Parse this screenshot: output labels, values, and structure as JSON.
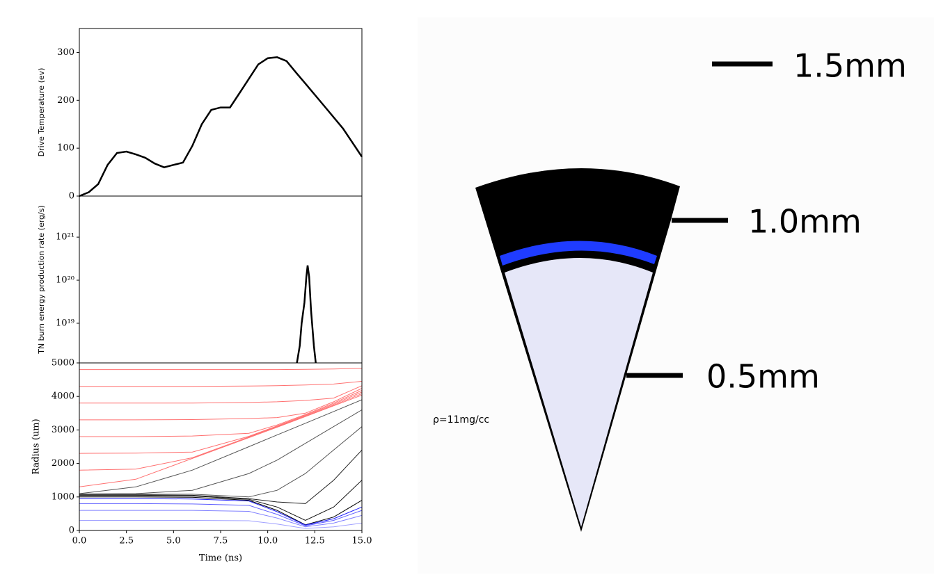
{
  "chart_data": [
    {
      "type": "line",
      "ylabel": "Drive Temperature (ev)",
      "xlim": [
        0,
        15
      ],
      "ylim": [
        0,
        350
      ],
      "yticks": [
        0,
        100,
        200,
        300
      ],
      "x": [
        0,
        0.5,
        1,
        1.5,
        2,
        2.5,
        3,
        3.5,
        4,
        4.5,
        5,
        5.5,
        6,
        6.5,
        7,
        7.5,
        8,
        8.5,
        9,
        9.5,
        10,
        10.5,
        11,
        11.5,
        12,
        13,
        14,
        15
      ],
      "values": [
        0,
        8,
        25,
        65,
        90,
        93,
        87,
        80,
        68,
        60,
        65,
        70,
        105,
        150,
        180,
        185,
        185,
        215,
        245,
        275,
        288,
        290,
        282,
        258,
        235,
        188,
        141,
        82
      ],
      "color": "#000000"
    },
    {
      "type": "line",
      "ylabel": "TN burn energy production rate (erg/s)",
      "xlim": [
        0,
        15
      ],
      "ylim": [
        1.2e+18,
        9e+21
      ],
      "log_y": true,
      "yticks": [
        {
          "value": 1e+19,
          "label": "10¹⁹"
        },
        {
          "value": 1e+20,
          "label": "10²⁰"
        },
        {
          "value": 1e+21,
          "label": "10²¹"
        }
      ],
      "x": [
        11.55,
        11.7,
        11.8,
        11.95,
        12.05,
        12.12,
        12.2,
        12.3,
        12.45,
        12.55
      ],
      "values": [
        1.2e+18,
        3e+18,
        1e+19,
        3e+19,
        1.2e+20,
        2.2e+20,
        1.2e+20,
        2e+19,
        3e+18,
        1.2e+18
      ],
      "color": "#000000"
    },
    {
      "type": "line",
      "ylabel": "Radius (um)",
      "xlabel": "Time (ns)",
      "xlim": [
        0,
        15
      ],
      "ylim": [
        0,
        5000
      ],
      "yticks": [
        0,
        1000,
        2000,
        3000,
        4000,
        5000
      ],
      "xticks": [
        {
          "value": 0,
          "label": "0.0"
        },
        {
          "value": 2.5,
          "label": "2.5"
        },
        {
          "value": 5,
          "label": "5.0"
        },
        {
          "value": 7.5,
          "label": "7.5"
        },
        {
          "value": 10,
          "label": "10.0"
        },
        {
          "value": 12.5,
          "label": "12.5"
        },
        {
          "value": 15,
          "label": "15.0"
        }
      ],
      "x": [
        0,
        3,
        6,
        9,
        10.5,
        12,
        13.5,
        15
      ],
      "series": [
        {
          "color": "#ff7070",
          "values": [
            1300,
            1530,
            2150,
            2770,
            3080,
            3400,
            3720,
            4040
          ]
        },
        {
          "color": "#ff7070",
          "values": [
            1800,
            1830,
            2170,
            2790,
            3100,
            3420,
            3740,
            4080
          ]
        },
        {
          "color": "#ff7070",
          "values": [
            2300,
            2310,
            2340,
            2810,
            3120,
            3440,
            3770,
            4130
          ]
        },
        {
          "color": "#ff7070",
          "values": [
            2800,
            2800,
            2820,
            2900,
            3150,
            3460,
            3800,
            4180
          ]
        },
        {
          "color": "#ff7070",
          "values": [
            3300,
            3300,
            3310,
            3340,
            3370,
            3500,
            3840,
            4240
          ]
        },
        {
          "color": "#ff7070",
          "values": [
            3800,
            3800,
            3800,
            3820,
            3840,
            3880,
            3950,
            4320
          ]
        },
        {
          "color": "#ff7070",
          "values": [
            4300,
            4300,
            4300,
            4310,
            4320,
            4340,
            4370,
            4450
          ]
        },
        {
          "color": "#ff7070",
          "values": [
            4800,
            4800,
            4800,
            4800,
            4800,
            4810,
            4820,
            4840
          ]
        },
        {
          "color": "#555555",
          "values": [
            1100,
            1300,
            1800,
            2500,
            2850,
            3200,
            3550,
            3900
          ]
        },
        {
          "color": "#555555",
          "values": [
            1090,
            1100,
            1200,
            1700,
            2100,
            2600,
            3100,
            3600
          ]
        },
        {
          "color": "#555555",
          "values": [
            1080,
            1080,
            1080,
            1000,
            1200,
            1700,
            2400,
            3100
          ]
        },
        {
          "color": "#222222",
          "values": [
            1060,
            1060,
            1050,
            950,
            850,
            800,
            1500,
            2400
          ]
        },
        {
          "color": "#111111",
          "values": [
            1040,
            1040,
            1030,
            930,
            700,
            300,
            700,
            1500
          ]
        },
        {
          "color": "#000000",
          "values": [
            1000,
            1000,
            990,
            900,
            600,
            170,
            400,
            900
          ]
        },
        {
          "color": "#2020ff",
          "values": [
            950,
            950,
            940,
            880,
            560,
            160,
            350,
            700
          ]
        },
        {
          "color": "#6060ff",
          "values": [
            800,
            800,
            790,
            750,
            480,
            140,
            300,
            600
          ]
        },
        {
          "color": "#8080ff",
          "values": [
            600,
            600,
            600,
            570,
            370,
            110,
            220,
            450
          ]
        },
        {
          "color": "#a0a0ff",
          "values": [
            300,
            300,
            300,
            290,
            190,
            60,
            110,
            220
          ]
        }
      ]
    }
  ],
  "diagram": {
    "scale_labels": [
      "1.5mm",
      "1.0mm",
      "0.5mm"
    ],
    "density_label": "ρ=11mg/cc"
  }
}
